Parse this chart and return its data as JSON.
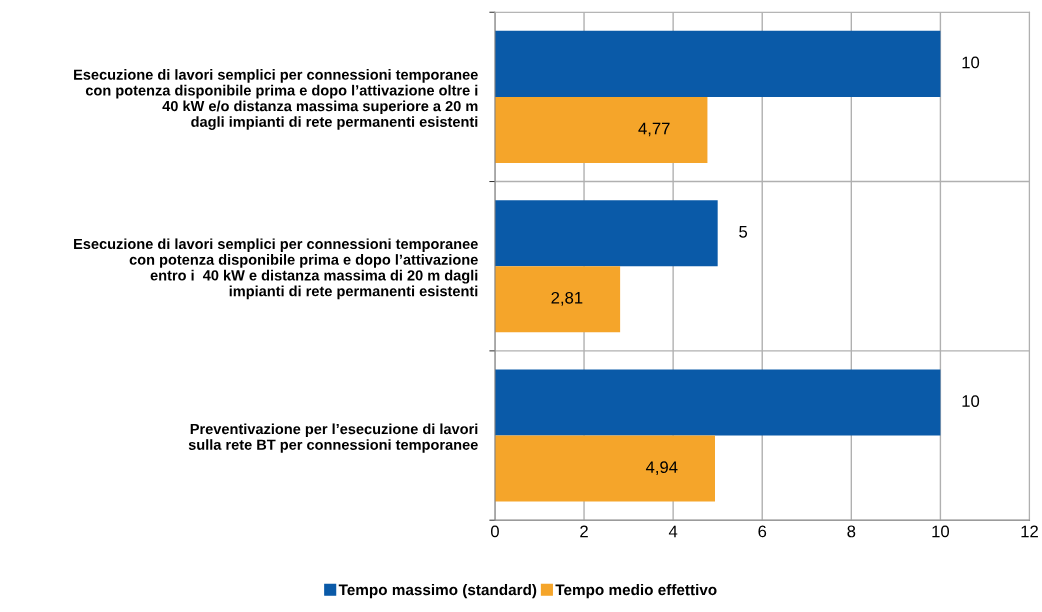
{
  "chart_data": {
    "type": "bar",
    "orientation": "horizontal",
    "categories": [
      "Esecuzione di lavori semplici per connessioni temporanee\ncon potenza disponibile prima e dopo l’attivazione oltre i\n40 kW e/o distanza massima superiore a 20 m\ndagli impianti di rete permanenti esistenti",
      "Esecuzione di lavori semplici per connessioni temporanee\ncon potenza disponibile prima e dopo l’attivazione\nentro i  40 kW e distanza massima di 20 m dagli\nimpianti di rete permanenti esistenti",
      "Preventivazione per l’esecuzione di lavori\nsulla rete BT per connessioni temporanee"
    ],
    "series": [
      {
        "name": "Tempo massimo (standard)",
        "color": "#0a5aa8",
        "values": [
          10,
          5,
          10
        ],
        "value_labels": [
          "10",
          "5",
          "10"
        ]
      },
      {
        "name": "Tempo medio effettivo",
        "color": "#f5a52a",
        "values": [
          4.77,
          2.81,
          4.94
        ],
        "value_labels": [
          "4,77",
          "2,81",
          "4,94"
        ]
      }
    ],
    "xlim": [
      0,
      12
    ],
    "xticks": [
      0,
      2,
      4,
      6,
      8,
      10,
      12
    ],
    "grid": true,
    "legend": "bottom"
  }
}
